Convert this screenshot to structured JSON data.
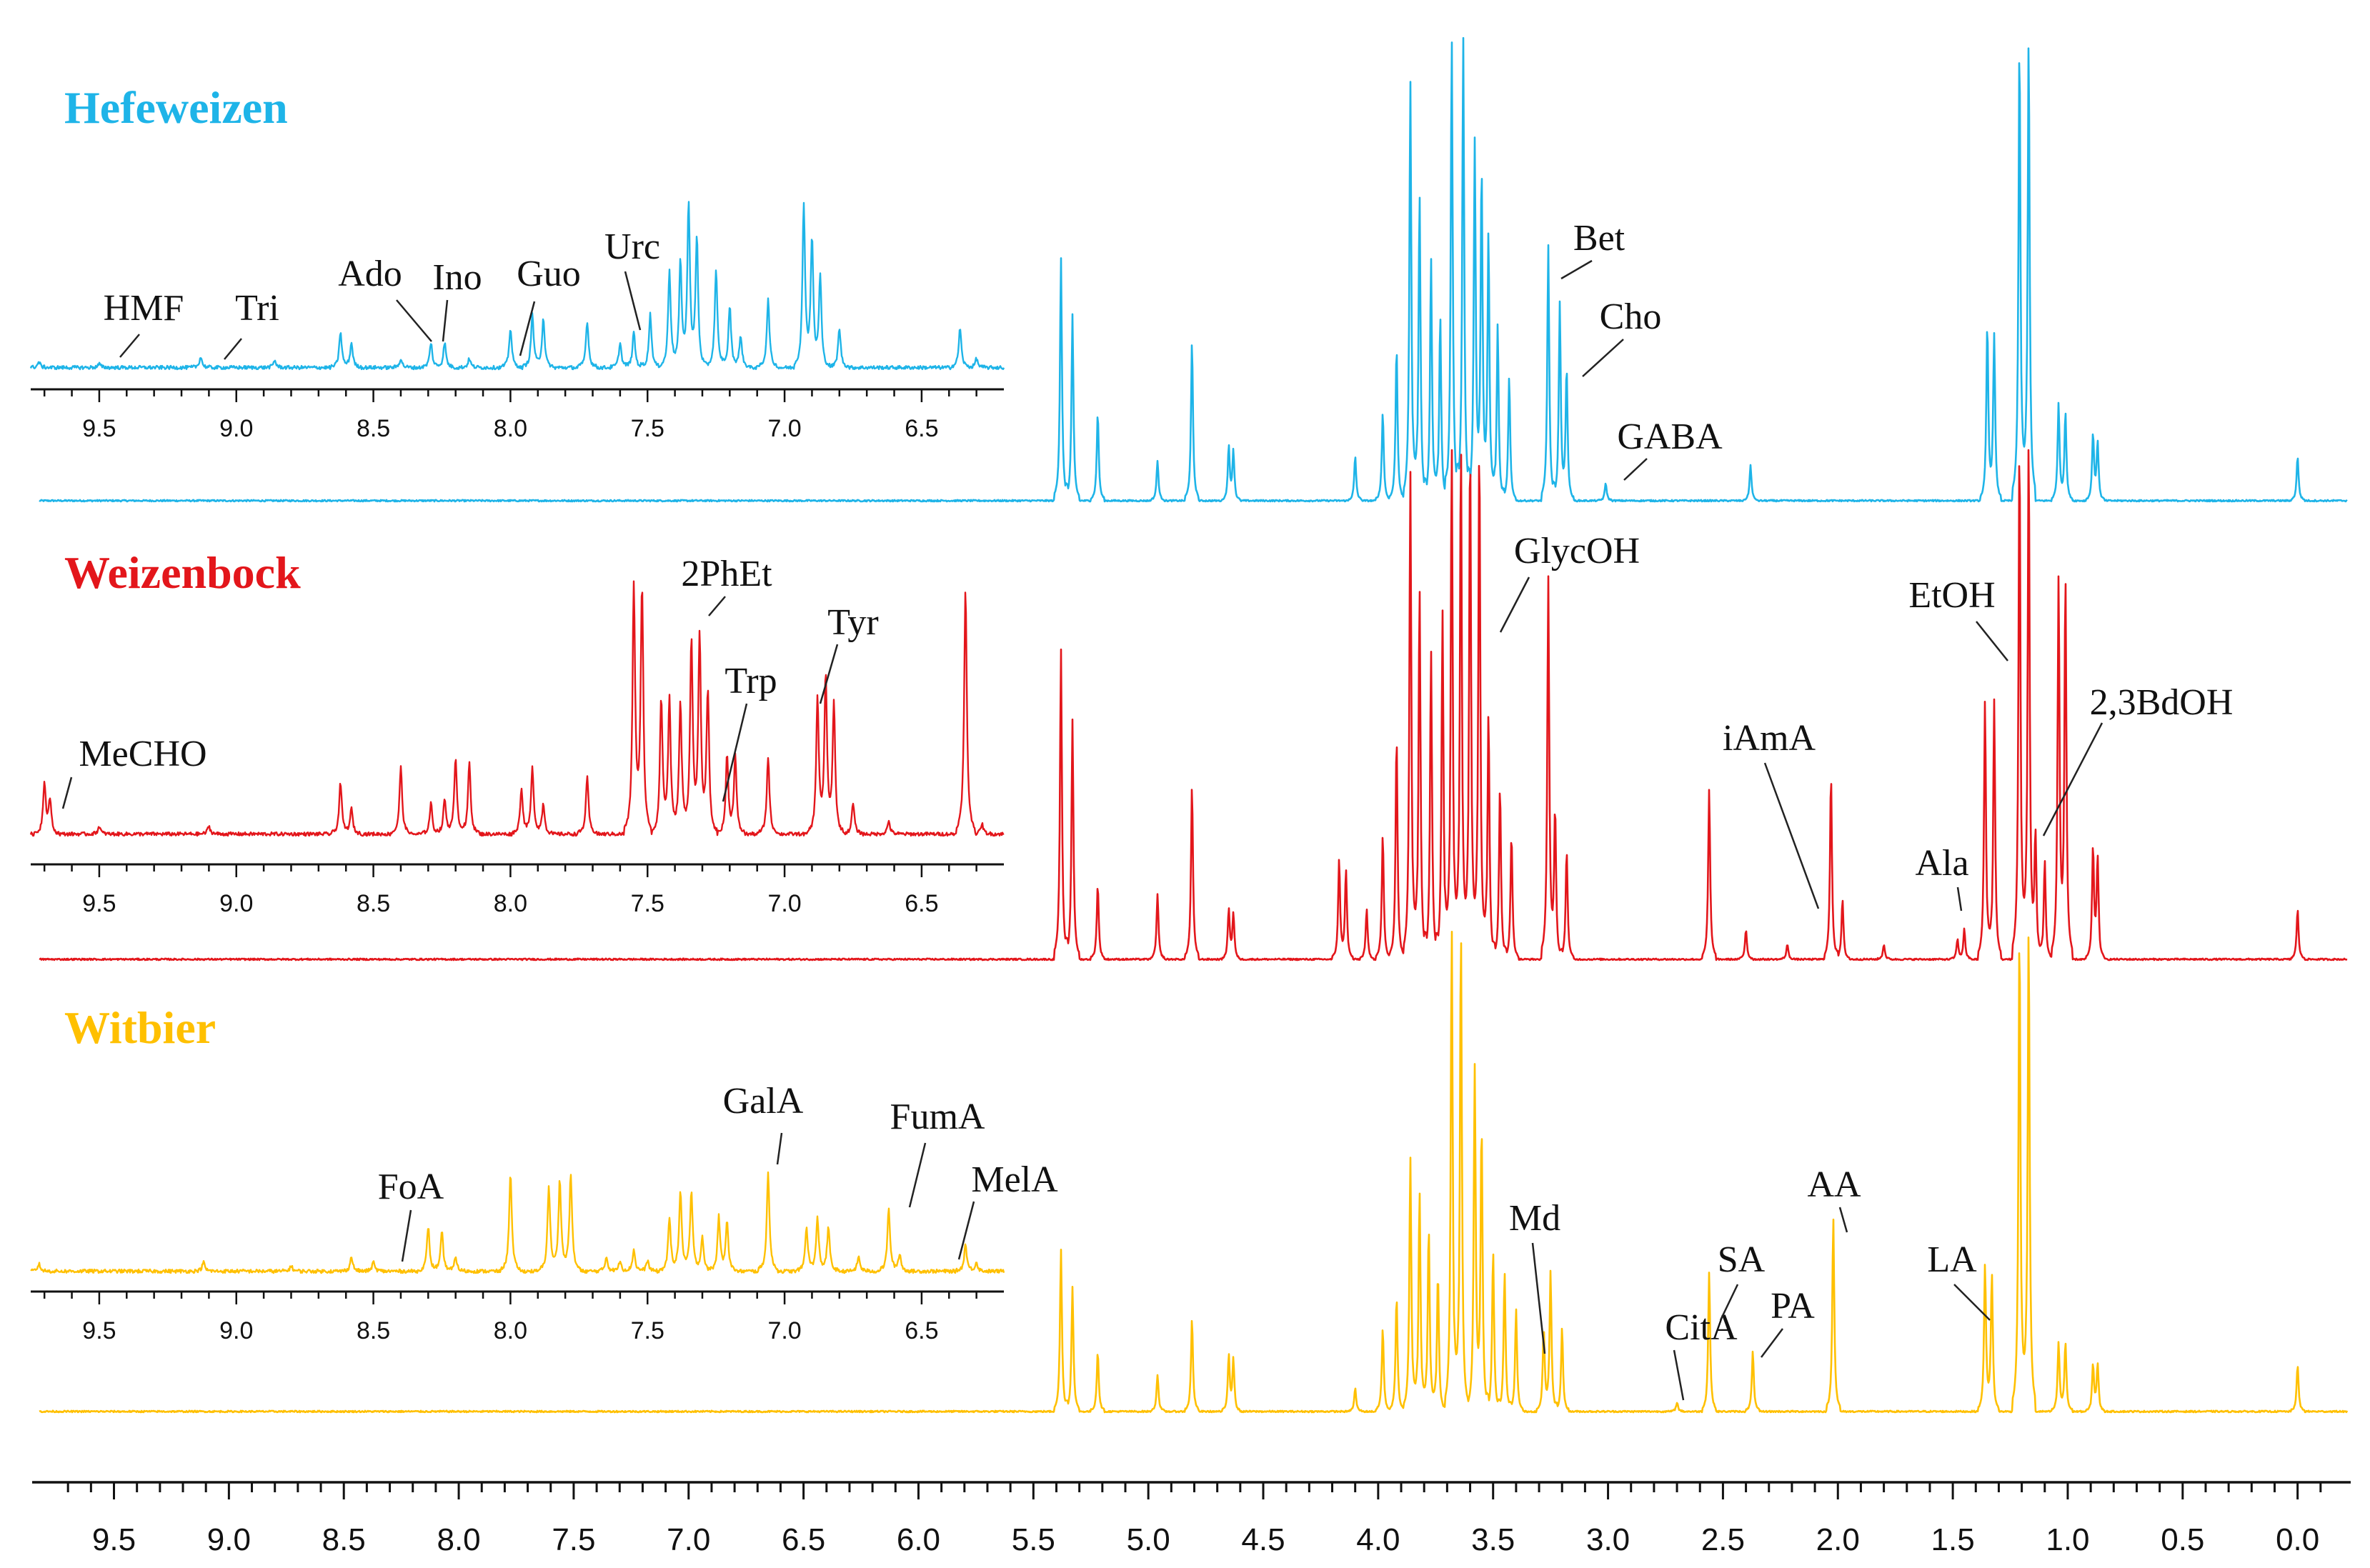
{
  "chart_data": {
    "type": "line",
    "xlabel": "",
    "ylabel": "",
    "xlim": [
      9.8,
      -0.2
    ],
    "x_ticks": [
      "9.5",
      "9.0",
      "8.5",
      "8.0",
      "7.5",
      "7.0",
      "6.5",
      "6.0",
      "5.5",
      "5.0",
      "4.5",
      "4.0",
      "3.5",
      "3.0",
      "2.5",
      "2.0",
      "1.5",
      "1.0",
      "0.5",
      "0.0"
    ],
    "inset_xlim": [
      9.75,
      6.2
    ],
    "inset_ticks": [
      "9.5",
      "9.0",
      "8.5",
      "8.0",
      "7.5",
      "7.0",
      "6.5"
    ],
    "series": [
      {
        "name": "Hefeweizen",
        "color": "#1EB4E8",
        "main_peaks": [
          [
            5.38,
            0.55
          ],
          [
            5.33,
            0.42
          ],
          [
            5.22,
            0.2
          ],
          [
            4.96,
            0.09
          ],
          [
            4.81,
            0.36
          ],
          [
            4.65,
            0.12
          ],
          [
            4.63,
            0.11
          ],
          [
            4.1,
            0.1
          ],
          [
            3.98,
            0.2
          ],
          [
            3.92,
            0.35
          ],
          [
            3.86,
            0.95
          ],
          [
            3.82,
            0.7
          ],
          [
            3.77,
            0.55
          ],
          [
            3.73,
            0.42
          ],
          [
            3.68,
            1.05
          ],
          [
            3.63,
            1.05
          ],
          [
            3.58,
            0.82
          ],
          [
            3.55,
            0.75
          ],
          [
            3.52,
            0.6
          ],
          [
            3.48,
            0.4
          ],
          [
            3.43,
            0.28
          ],
          [
            3.26,
            0.58
          ],
          [
            3.21,
            0.45
          ],
          [
            3.18,
            0.3
          ],
          [
            3.01,
            0.04
          ],
          [
            2.38,
            0.08
          ],
          [
            1.35,
            0.4
          ],
          [
            1.32,
            0.38
          ],
          [
            1.21,
            1.05
          ],
          [
            1.17,
            1.05
          ],
          [
            1.04,
            0.22
          ],
          [
            1.01,
            0.2
          ],
          [
            0.89,
            0.15
          ],
          [
            0.87,
            0.13
          ],
          [
            0.0,
            0.1
          ]
        ],
        "inset_peaks": [
          [
            9.72,
            0.03
          ],
          [
            9.5,
            0.02
          ],
          [
            9.13,
            0.06
          ],
          [
            8.86,
            0.04
          ],
          [
            8.62,
            0.2
          ],
          [
            8.58,
            0.14
          ],
          [
            8.4,
            0.05
          ],
          [
            8.29,
            0.14
          ],
          [
            8.24,
            0.14
          ],
          [
            8.15,
            0.05
          ],
          [
            8.0,
            0.22
          ],
          [
            7.92,
            0.3
          ],
          [
            7.88,
            0.28
          ],
          [
            7.72,
            0.26
          ],
          [
            7.6,
            0.14
          ],
          [
            7.55,
            0.2
          ],
          [
            7.49,
            0.3
          ],
          [
            7.42,
            0.55
          ],
          [
            7.38,
            0.58
          ],
          [
            7.35,
            0.9
          ],
          [
            7.32,
            0.72
          ],
          [
            7.25,
            0.55
          ],
          [
            7.2,
            0.35
          ],
          [
            7.16,
            0.18
          ],
          [
            7.06,
            0.38
          ],
          [
            6.93,
            0.9
          ],
          [
            6.9,
            0.7
          ],
          [
            6.87,
            0.5
          ],
          [
            6.8,
            0.22
          ],
          [
            6.36,
            0.22
          ],
          [
            6.3,
            0.05
          ]
        ]
      },
      {
        "name": "Weizenbock",
        "color": "#E3161B",
        "main_peaks": [
          [
            5.38,
            0.62
          ],
          [
            5.33,
            0.48
          ],
          [
            5.22,
            0.15
          ],
          [
            4.96,
            0.13
          ],
          [
            4.81,
            0.35
          ],
          [
            4.65,
            0.1
          ],
          [
            4.63,
            0.09
          ],
          [
            4.17,
            0.2
          ],
          [
            4.14,
            0.18
          ],
          [
            4.05,
            0.1
          ],
          [
            3.98,
            0.25
          ],
          [
            3.92,
            0.45
          ],
          [
            3.86,
            0.98
          ],
          [
            3.82,
            0.75
          ],
          [
            3.77,
            0.62
          ],
          [
            3.72,
            0.7
          ],
          [
            3.68,
            1.05
          ],
          [
            3.64,
            1.05
          ],
          [
            3.6,
            1.05
          ],
          [
            3.56,
            1.05
          ],
          [
            3.52,
            0.5
          ],
          [
            3.47,
            0.35
          ],
          [
            3.42,
            0.25
          ],
          [
            3.26,
            0.76
          ],
          [
            3.23,
            0.3
          ],
          [
            3.18,
            0.22
          ],
          [
            2.56,
            0.34
          ],
          [
            2.4,
            0.06
          ],
          [
            2.22,
            0.03
          ],
          [
            2.03,
            0.37
          ],
          [
            1.98,
            0.12
          ],
          [
            1.8,
            0.03
          ],
          [
            1.48,
            0.04
          ],
          [
            1.45,
            0.06
          ],
          [
            1.36,
            0.52
          ],
          [
            1.32,
            0.52
          ],
          [
            1.21,
            1.05
          ],
          [
            1.17,
            1.05
          ],
          [
            1.14,
            0.26
          ],
          [
            1.1,
            0.2
          ],
          [
            1.04,
            0.77
          ],
          [
            1.01,
            0.77
          ],
          [
            0.89,
            0.22
          ],
          [
            0.87,
            0.2
          ],
          [
            0.0,
            0.1
          ]
        ],
        "inset_peaks": [
          [
            9.7,
            0.2
          ],
          [
            9.68,
            0.13
          ],
          [
            9.5,
            0.03
          ],
          [
            9.1,
            0.03
          ],
          [
            8.62,
            0.2
          ],
          [
            8.58,
            0.1
          ],
          [
            8.4,
            0.26
          ],
          [
            8.29,
            0.12
          ],
          [
            8.24,
            0.14
          ],
          [
            8.2,
            0.3
          ],
          [
            8.15,
            0.28
          ],
          [
            7.96,
            0.18
          ],
          [
            7.92,
            0.26
          ],
          [
            7.88,
            0.12
          ],
          [
            7.72,
            0.22
          ],
          [
            7.55,
            0.95
          ],
          [
            7.52,
            0.95
          ],
          [
            7.45,
            0.52
          ],
          [
            7.42,
            0.52
          ],
          [
            7.38,
            0.52
          ],
          [
            7.34,
            0.75
          ],
          [
            7.31,
            0.75
          ],
          [
            7.28,
            0.55
          ],
          [
            7.21,
            0.3
          ],
          [
            7.18,
            0.3
          ],
          [
            7.06,
            0.3
          ],
          [
            6.88,
            0.52
          ],
          [
            6.85,
            0.6
          ],
          [
            6.82,
            0.5
          ],
          [
            6.75,
            0.12
          ],
          [
            6.62,
            0.05
          ],
          [
            6.34,
            0.95
          ],
          [
            6.28,
            0.04
          ]
        ]
      },
      {
        "name": "Witbier",
        "color": "#FFC000",
        "main_peaks": [
          [
            5.38,
            0.35
          ],
          [
            5.33,
            0.27
          ],
          [
            5.22,
            0.13
          ],
          [
            4.96,
            0.08
          ],
          [
            4.81,
            0.2
          ],
          [
            4.65,
            0.12
          ],
          [
            4.63,
            0.11
          ],
          [
            4.1,
            0.05
          ],
          [
            3.98,
            0.18
          ],
          [
            3.92,
            0.25
          ],
          [
            3.86,
            0.55
          ],
          [
            3.82,
            0.48
          ],
          [
            3.78,
            0.4
          ],
          [
            3.74,
            0.3
          ],
          [
            3.68,
            1.05
          ],
          [
            3.64,
            1.05
          ],
          [
            3.58,
            0.75
          ],
          [
            3.55,
            0.62
          ],
          [
            3.5,
            0.35
          ],
          [
            3.45,
            0.3
          ],
          [
            3.4,
            0.22
          ],
          [
            3.28,
            0.18
          ],
          [
            3.25,
            0.3
          ],
          [
            3.2,
            0.18
          ],
          [
            2.7,
            0.02
          ],
          [
            2.56,
            0.3
          ],
          [
            2.37,
            0.13
          ],
          [
            2.02,
            0.42
          ],
          [
            1.36,
            0.32
          ],
          [
            1.33,
            0.3
          ],
          [
            1.21,
            1.05
          ],
          [
            1.17,
            1.05
          ],
          [
            1.04,
            0.15
          ],
          [
            1.01,
            0.15
          ],
          [
            0.89,
            0.1
          ],
          [
            0.87,
            0.1
          ],
          [
            0.0,
            0.1
          ]
        ],
        "inset_peaks": [
          [
            9.72,
            0.04
          ],
          [
            9.12,
            0.05
          ],
          [
            8.8,
            0.03
          ],
          [
            8.58,
            0.08
          ],
          [
            8.5,
            0.05
          ],
          [
            8.3,
            0.25
          ],
          [
            8.25,
            0.22
          ],
          [
            8.2,
            0.08
          ],
          [
            8.0,
            0.55
          ],
          [
            7.86,
            0.48
          ],
          [
            7.82,
            0.52
          ],
          [
            7.78,
            0.55
          ],
          [
            7.65,
            0.08
          ],
          [
            7.6,
            0.06
          ],
          [
            7.55,
            0.12
          ],
          [
            7.5,
            0.06
          ],
          [
            7.42,
            0.3
          ],
          [
            7.38,
            0.45
          ],
          [
            7.34,
            0.45
          ],
          [
            7.3,
            0.2
          ],
          [
            7.24,
            0.3
          ],
          [
            7.21,
            0.28
          ],
          [
            7.06,
            0.55
          ],
          [
            6.92,
            0.25
          ],
          [
            6.88,
            0.3
          ],
          [
            6.84,
            0.25
          ],
          [
            6.73,
            0.08
          ],
          [
            6.62,
            0.35
          ],
          [
            6.58,
            0.1
          ],
          [
            6.34,
            0.15
          ],
          [
            6.3,
            0.05
          ]
        ]
      }
    ],
    "annotations": [
      {
        "series": "Hefeweizen",
        "text": "HMF",
        "where": "inset"
      },
      {
        "series": "Hefeweizen",
        "text": "Tri",
        "where": "inset"
      },
      {
        "series": "Hefeweizen",
        "text": "Ado",
        "where": "inset"
      },
      {
        "series": "Hefeweizen",
        "text": "Ino",
        "where": "inset"
      },
      {
        "series": "Hefeweizen",
        "text": "Guo",
        "where": "inset"
      },
      {
        "series": "Hefeweizen",
        "text": "Urc",
        "where": "inset"
      },
      {
        "series": "Hefeweizen",
        "text": "Bet",
        "where": "main"
      },
      {
        "series": "Hefeweizen",
        "text": "Cho",
        "where": "main"
      },
      {
        "series": "Hefeweizen",
        "text": "GABA",
        "where": "main"
      },
      {
        "series": "Weizenbock",
        "text": "MeCHO",
        "where": "inset"
      },
      {
        "series": "Weizenbock",
        "text": "2PhEt",
        "where": "inset"
      },
      {
        "series": "Weizenbock",
        "text": "Trp",
        "where": "inset"
      },
      {
        "series": "Weizenbock",
        "text": "Tyr",
        "where": "inset"
      },
      {
        "series": "Weizenbock",
        "text": "GlycOH",
        "where": "main"
      },
      {
        "series": "Weizenbock",
        "text": "EtOH",
        "where": "main"
      },
      {
        "series": "Weizenbock",
        "text": "2,3BdOH",
        "where": "main"
      },
      {
        "series": "Weizenbock",
        "text": "iAmA",
        "where": "main"
      },
      {
        "series": "Weizenbock",
        "text": "Ala",
        "where": "main"
      },
      {
        "series": "Witbier",
        "text": "FoA",
        "where": "inset"
      },
      {
        "series": "Witbier",
        "text": "GalA",
        "where": "inset"
      },
      {
        "series": "Witbier",
        "text": "FumA",
        "where": "inset"
      },
      {
        "series": "Witbier",
        "text": "MelA",
        "where": "inset"
      },
      {
        "series": "Witbier",
        "text": "Md",
        "where": "main"
      },
      {
        "series": "Witbier",
        "text": "CitA",
        "where": "main"
      },
      {
        "series": "Witbier",
        "text": "SA",
        "where": "main"
      },
      {
        "series": "Witbier",
        "text": "PA",
        "where": "main"
      },
      {
        "series": "Witbier",
        "text": "AA",
        "where": "main"
      },
      {
        "series": "Witbier",
        "text": "LA",
        "where": "main"
      }
    ]
  }
}
